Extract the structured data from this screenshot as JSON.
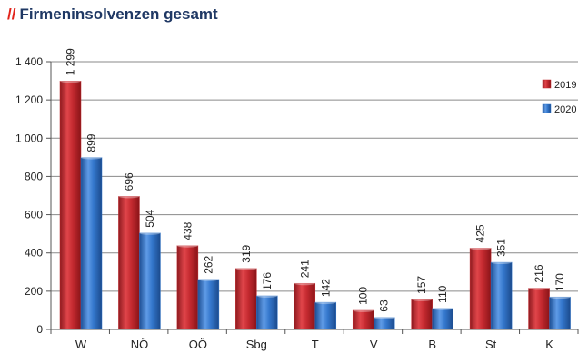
{
  "title_prefix": "//",
  "title": "Firmeninsolvenzen gesamt",
  "chart_data": {
    "type": "bar",
    "title": "Firmeninsolvenzen gesamt",
    "xlabel": "",
    "ylabel": "",
    "categories": [
      "W",
      "NÖ",
      "OÖ",
      "Sbg",
      "T",
      "V",
      "B",
      "St",
      "K"
    ],
    "series": [
      {
        "name": "2019",
        "values": [
          1299,
          696,
          438,
          319,
          241,
          100,
          157,
          425,
          216
        ],
        "labels": [
          "1 299",
          "696",
          "438",
          "319",
          "241",
          "100",
          "157",
          "425",
          "216"
        ],
        "color": "#c0282d"
      },
      {
        "name": "2020",
        "values": [
          899,
          504,
          262,
          176,
          142,
          63,
          110,
          351,
          170
        ],
        "labels": [
          "899",
          "504",
          "262",
          "176",
          "142",
          "63",
          "110",
          "351",
          "170"
        ],
        "color": "#2f74c9"
      }
    ],
    "ylim": [
      0,
      1400
    ],
    "yticks": [
      0,
      200,
      400,
      600,
      800,
      1000,
      1200,
      1400
    ],
    "ytick_labels": [
      "0",
      "200",
      "400",
      "600",
      "800",
      "1 000",
      "1 200",
      "1 400"
    ],
    "grid": true,
    "legend_position": "right"
  }
}
